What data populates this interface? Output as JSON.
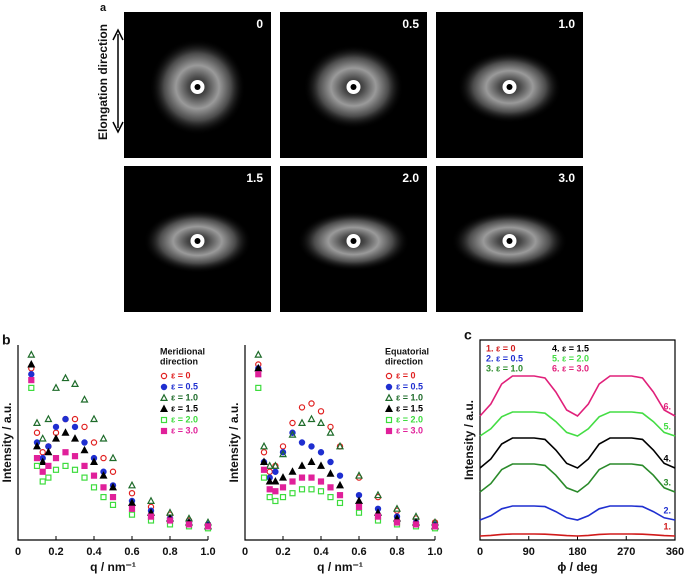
{
  "panel_a": {
    "panel_label": "a",
    "direction_label": "Elongation direction",
    "image_labels": [
      "0",
      "0.5",
      "1.0",
      "1.5",
      "2.0",
      "3.0"
    ]
  },
  "chart_data": [
    {
      "type": "scatter",
      "panel_label": "b",
      "x_label": "q / nm⁻¹",
      "y_label": "Intensity / a.u.",
      "legend_title": [
        "Meridional",
        "direction"
      ],
      "x": [
        0.07,
        0.1,
        0.13,
        0.16,
        0.2,
        0.25,
        0.3,
        0.35,
        0.4,
        0.45,
        0.5,
        0.6,
        0.7,
        0.8,
        0.9,
        1.0
      ],
      "xlim": [
        0,
        1.0
      ],
      "xticks": [
        0,
        0.2,
        0.4,
        0.6,
        0.8,
        {
          "value": 1,
          "label": "1.0"
        }
      ],
      "ylim": [
        0,
        100
      ],
      "series": [
        {
          "name": "ε = 0",
          "color": "#e02020",
          "marker": "circle",
          "filled": false,
          "values": [
            88,
            55,
            45,
            48,
            55,
            62,
            62,
            58,
            50,
            42,
            35,
            24,
            17,
            13,
            10,
            8
          ]
        },
        {
          "name": "ε = 0.5",
          "color": "#1f2fd0",
          "marker": "circle",
          "filled": true,
          "values": [
            85,
            50,
            42,
            48,
            58,
            62,
            58,
            50,
            42,
            35,
            28,
            20,
            15,
            11,
            9,
            8
          ]
        },
        {
          "name": "ε = 1.0",
          "color": "#1e6b2a",
          "marker": "triangle",
          "filled": false,
          "values": [
            95,
            60,
            52,
            62,
            78,
            83,
            80,
            72,
            62,
            52,
            42,
            28,
            20,
            14,
            11,
            9
          ]
        },
        {
          "name": "ε = 1.5",
          "color": "#000000",
          "marker": "triangle",
          "filled": true,
          "values": [
            90,
            48,
            40,
            45,
            52,
            55,
            52,
            46,
            40,
            33,
            27,
            19,
            14,
            11,
            9,
            7
          ]
        },
        {
          "name": "ε = 2.0",
          "color": "#3ddc3d",
          "marker": "square",
          "filled": false,
          "values": [
            78,
            38,
            30,
            32,
            36,
            38,
            36,
            32,
            27,
            22,
            18,
            13,
            10,
            8,
            7,
            6
          ]
        },
        {
          "name": "ε = 3.0",
          "color": "#e0209a",
          "marker": "square",
          "filled": true,
          "values": [
            82,
            42,
            35,
            38,
            42,
            45,
            43,
            38,
            33,
            27,
            22,
            16,
            12,
            10,
            8,
            7
          ]
        }
      ]
    },
    {
      "type": "scatter",
      "x_label": "q / nm⁻¹",
      "y_label": "Intensity / a.u.",
      "legend_title": [
        "Equatorial",
        "direction"
      ],
      "x": [
        0.07,
        0.1,
        0.13,
        0.16,
        0.2,
        0.25,
        0.3,
        0.35,
        0.4,
        0.45,
        0.5,
        0.6,
        0.7,
        0.8,
        0.9,
        1.0
      ],
      "xlim": [
        0,
        1.0
      ],
      "xticks": [
        0,
        0.2,
        0.4,
        0.6,
        0.8,
        {
          "value": 1,
          "label": "1.0"
        }
      ],
      "ylim": [
        0,
        100
      ],
      "series": [
        {
          "name": "ε = 0",
          "color": "#e02020",
          "marker": "circle",
          "filled": false,
          "values": [
            90,
            45,
            35,
            38,
            48,
            60,
            68,
            70,
            66,
            58,
            48,
            32,
            22,
            15,
            11,
            9
          ]
        },
        {
          "name": "ε = 0.5",
          "color": "#1f2fd0",
          "marker": "circle",
          "filled": true,
          "values": [
            88,
            40,
            32,
            35,
            45,
            55,
            50,
            48,
            45,
            40,
            33,
            23,
            16,
            12,
            9,
            8
          ]
        },
        {
          "name": "ε = 1.0",
          "color": "#1e6b2a",
          "marker": "triangle",
          "filled": false,
          "values": [
            95,
            48,
            38,
            38,
            44,
            54,
            60,
            62,
            60,
            55,
            48,
            33,
            23,
            16,
            12,
            9
          ]
        },
        {
          "name": "ε = 1.5",
          "color": "#000000",
          "marker": "triangle",
          "filled": true,
          "values": [
            88,
            40,
            30,
            30,
            32,
            35,
            38,
            40,
            38,
            34,
            28,
            20,
            14,
            11,
            9,
            7
          ]
        },
        {
          "name": "ε = 2.0",
          "color": "#3ddc3d",
          "marker": "square",
          "filled": false,
          "values": [
            78,
            32,
            22,
            20,
            22,
            24,
            26,
            26,
            25,
            22,
            19,
            14,
            10,
            8,
            7,
            6
          ]
        },
        {
          "name": "ε = 3.0",
          "color": "#e0209a",
          "marker": "square",
          "filled": true,
          "values": [
            85,
            36,
            26,
            25,
            27,
            30,
            32,
            32,
            30,
            27,
            23,
            17,
            12,
            9,
            8,
            7
          ]
        }
      ]
    },
    {
      "type": "line",
      "panel_label": "c",
      "x_label": "ϕ / deg",
      "y_label": "Intensity / a.u.",
      "x": [
        0,
        20,
        40,
        60,
        80,
        100,
        120,
        140,
        160,
        180,
        200,
        220,
        240,
        260,
        280,
        300,
        320,
        340,
        360
      ],
      "xlim": [
        0,
        360
      ],
      "xticks": [
        0,
        90,
        180,
        270,
        360
      ],
      "ylim": [
        0,
        100
      ],
      "series": [
        {
          "name": "1. ε = 0",
          "end_label": "1.",
          "color": "#d01a1a",
          "values": [
            2,
            2.3,
            2.8,
            3,
            3,
            3,
            2.9,
            2.6,
            2.2,
            2,
            2.3,
            2.8,
            3,
            3,
            3,
            2.9,
            2.6,
            2.2,
            2
          ]
        },
        {
          "name": "2. ε = 0.5",
          "end_label": "2.",
          "color": "#1f2fd0",
          "values": [
            10,
            12.1,
            15.6,
            17,
            17,
            17,
            16.7,
            14.2,
            11.1,
            10,
            12.1,
            15.6,
            17,
            17,
            17,
            16.7,
            14.2,
            11.1,
            10
          ]
        },
        {
          "name": "3. ε = 1.0",
          "end_label": "3.",
          "color": "#2a8a2a",
          "values": [
            24,
            28.2,
            35.2,
            38,
            38,
            38,
            37.3,
            32.4,
            26.1,
            24,
            28.2,
            35.2,
            38,
            38,
            38,
            37.3,
            32.4,
            26.1,
            24
          ]
        },
        {
          "name": "4. ε = 1.5",
          "end_label": "4.",
          "color": "#000000",
          "values": [
            36,
            40.5,
            48,
            51,
            51,
            51,
            50.3,
            45,
            38.3,
            36,
            40.5,
            48,
            51,
            51,
            51,
            50.3,
            45,
            38.3,
            36
          ]
        },
        {
          "name": "5. ε = 2.0",
          "end_label": "5.",
          "color": "#44dd44",
          "values": [
            52,
            55.6,
            61.6,
            64,
            64,
            64,
            63.4,
            59.2,
            53.8,
            52,
            55.6,
            61.6,
            64,
            64,
            64,
            63.4,
            59.2,
            53.8,
            52
          ]
        },
        {
          "name": "6. ε = 3.0",
          "end_label": "6.",
          "color": "#e0207a",
          "values": [
            62,
            68,
            78,
            82,
            82,
            82,
            81,
            74,
            65,
            62,
            68,
            78,
            82,
            82,
            82,
            81,
            74,
            65,
            62
          ]
        }
      ]
    }
  ]
}
